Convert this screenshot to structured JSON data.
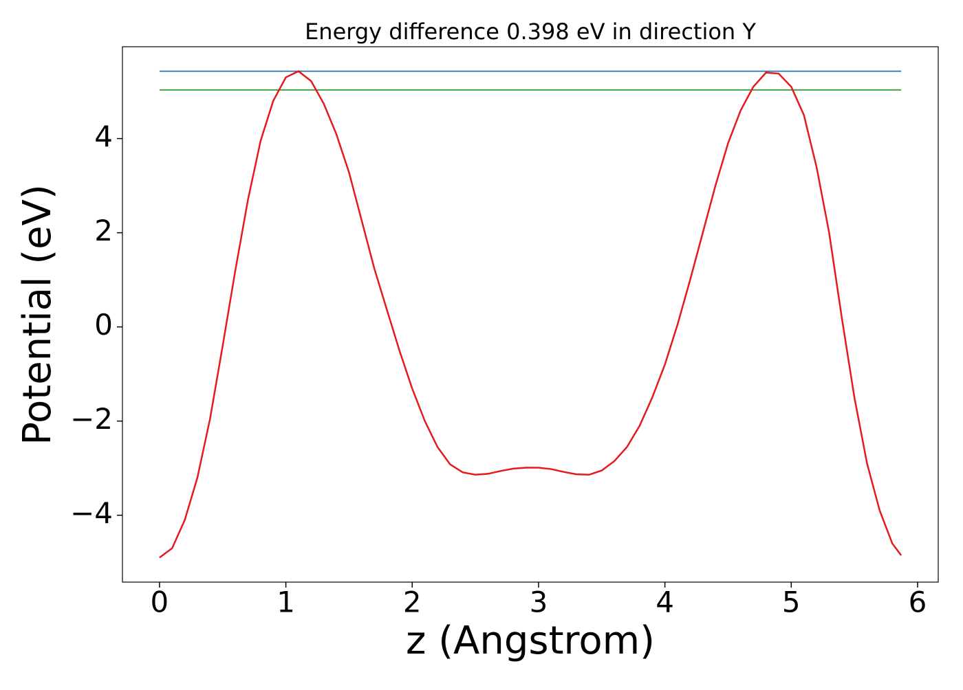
{
  "chart_data": {
    "type": "line",
    "title": "Energy difference 0.398 eV in direction Y",
    "x_label": "z (Angstrom)",
    "y_label": "Potential (eV)",
    "xlim": [
      -0.2935,
      6.1635
    ],
    "ylim": [
      -5.42,
      5.95
    ],
    "xticks": [
      0,
      1,
      2,
      3,
      4,
      5,
      6
    ],
    "yticks": [
      {
        "value": -4,
        "label": "−4"
      },
      {
        "value": -2,
        "label": "−2"
      },
      0,
      2,
      4
    ],
    "x": [
      0,
      0.1,
      0.2,
      0.3,
      0.4,
      0.5,
      0.6,
      0.7,
      0.8,
      0.9,
      1.0,
      1.1,
      1.2,
      1.3,
      1.4,
      1.5,
      1.6,
      1.7,
      1.8,
      1.9,
      2.0,
      2.1,
      2.2,
      2.3,
      2.4,
      2.5,
      2.6,
      2.7,
      2.8,
      2.9,
      3.0,
      3.1,
      3.2,
      3.3,
      3.4,
      3.5,
      3.6,
      3.7,
      3.8,
      3.9,
      4.0,
      4.1,
      4.2,
      4.3,
      4.4,
      4.5,
      4.6,
      4.7,
      4.8,
      4.9,
      5.0,
      5.1,
      5.2,
      5.3,
      5.4,
      5.5,
      5.6,
      5.7,
      5.8,
      5.87
    ],
    "series": [
      {
        "color": "#1f77b4",
        "x": [
          0,
          5.87
        ],
        "values": [
          5.43,
          5.43
        ]
      },
      {
        "color": "#2ca02c",
        "x": [
          0,
          5.87
        ],
        "values": [
          5.032,
          5.032
        ]
      },
      {
        "color": "#e41a1c",
        "values": [
          -4.9,
          -4.7,
          -4.1,
          -3.2,
          -1.95,
          -0.4,
          1.2,
          2.7,
          3.95,
          4.8,
          5.3,
          5.43,
          5.22,
          4.74,
          4.09,
          3.28,
          2.26,
          1.24,
          0.36,
          -0.51,
          -1.31,
          -2.0,
          -2.55,
          -2.92,
          -3.09,
          -3.14,
          -3.12,
          -3.06,
          -3.01,
          -2.99,
          -2.99,
          -3.02,
          -3.08,
          -3.13,
          -3.14,
          -3.05,
          -2.85,
          -2.55,
          -2.1,
          -1.5,
          -0.8,
          0.05,
          1.0,
          2.0,
          3.0,
          3.9,
          4.6,
          5.1,
          5.4,
          5.38,
          5.1,
          4.5,
          3.4,
          2.0,
          0.2,
          -1.5,
          -2.9,
          -3.9,
          -4.6,
          -4.85
        ]
      }
    ]
  }
}
